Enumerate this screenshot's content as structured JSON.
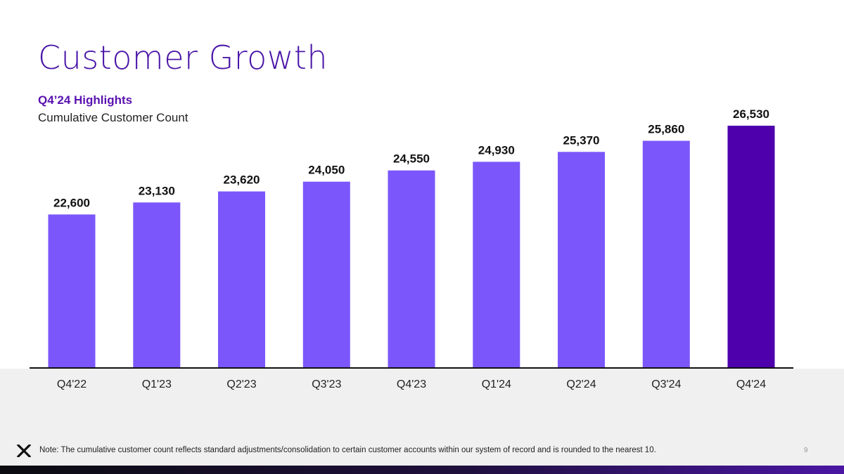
{
  "slide": {
    "title": "Customer Growth",
    "highlights": "Q4’24 Highlights",
    "subtitle": "Cumulative Customer Count",
    "note": "Note: The cumulative customer count reflects standard adjustments/consolidation to certain customer accounts within our system of record and is rounded to the nearest 10.",
    "page_number": "9",
    "logo_icon": "x-logo-icon"
  },
  "colors": {
    "title": "#4b16a8",
    "bar": "#7b57fb",
    "bar_highlight": "#4e00ac",
    "footer_bg": "#f0f0f0"
  },
  "chart_data": {
    "type": "bar",
    "categories": [
      "Q4'22",
      "Q1'23",
      "Q2'23",
      "Q3'23",
      "Q4'23",
      "Q1'24",
      "Q2'24",
      "Q3'24",
      "Q4'24"
    ],
    "values": [
      22600,
      23130,
      23620,
      24050,
      24550,
      24930,
      25370,
      25860,
      26530
    ],
    "value_labels": [
      "22,600",
      "23,130",
      "23,620",
      "24,050",
      "24,550",
      "24,930",
      "25,370",
      "25,860",
      "26,530"
    ],
    "highlight_index": 8,
    "title": "Cumulative Customer Count",
    "xlabel": "",
    "ylabel": "",
    "ylim": [
      15800,
      26530
    ],
    "grid": false,
    "legend": "none"
  }
}
